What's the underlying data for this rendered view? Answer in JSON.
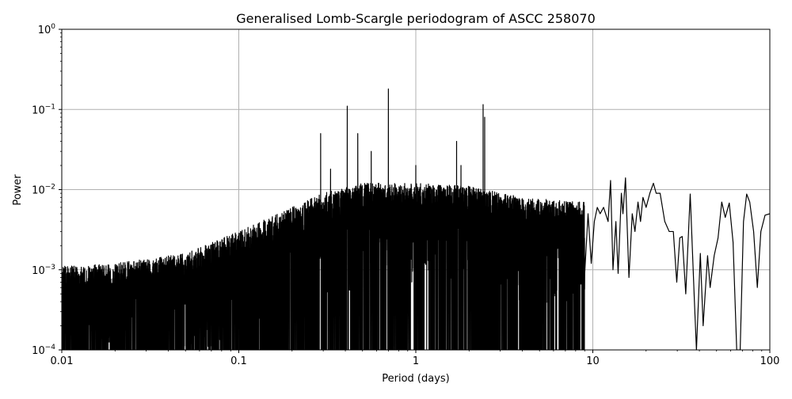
{
  "chart_data": {
    "type": "line",
    "title": "Generalised Lomb-Scargle periodogram of ASCC 258070",
    "xlabel": "Period (days)",
    "ylabel": "Power",
    "xscale": "log",
    "yscale": "log",
    "xlim": [
      0.01,
      100
    ],
    "ylim": [
      0.0001,
      1
    ],
    "grid": true,
    "legend": null,
    "x_ticks": [
      {
        "value": 0.01,
        "label": "0.01"
      },
      {
        "value": 0.1,
        "label": "0.1"
      },
      {
        "value": 1,
        "label": "1"
      },
      {
        "value": 10,
        "label": "10"
      },
      {
        "value": 100,
        "label": "100"
      }
    ],
    "y_ticks": [
      {
        "value": 0.0001,
        "base": "10",
        "exp": "−4"
      },
      {
        "value": 0.001,
        "base": "10",
        "exp": "−3"
      },
      {
        "value": 0.01,
        "base": "10",
        "exp": "−2"
      },
      {
        "value": 0.1,
        "base": "10",
        "exp": "−1"
      },
      {
        "value": 1,
        "base": "10",
        "exp": "0"
      }
    ],
    "noise_envelope": {
      "description": "Dense oscillating noise floor; upper envelope of spikes rises with period",
      "points": [
        [
          0.01,
          0.0011
        ],
        [
          0.02,
          0.0012
        ],
        [
          0.05,
          0.0016
        ],
        [
          0.1,
          0.003
        ],
        [
          0.2,
          0.006
        ],
        [
          0.3,
          0.009
        ],
        [
          0.5,
          0.012
        ],
        [
          1,
          0.012
        ],
        [
          2,
          0.011
        ],
        [
          4,
          0.008
        ],
        [
          8,
          0.007
        ]
      ]
    },
    "peaks": [
      {
        "period": 0.29,
        "power": 0.05
      },
      {
        "period": 0.33,
        "power": 0.018
      },
      {
        "period": 0.41,
        "power": 0.11
      },
      {
        "period": 0.47,
        "power": 0.05
      },
      {
        "period": 0.56,
        "power": 0.03
      },
      {
        "period": 0.7,
        "power": 0.18
      },
      {
        "period": 1.0,
        "power": 0.02
      },
      {
        "period": 1.7,
        "power": 0.04
      },
      {
        "period": 1.8,
        "power": 0.02
      },
      {
        "period": 2.4,
        "power": 0.115
      },
      {
        "period": 2.45,
        "power": 0.08
      }
    ],
    "smooth_tail": {
      "description": "Resolved low-frequency region, period ~9 to 100 d",
      "points": [
        [
          9.0,
          0.0009
        ],
        [
          9.4,
          0.005
        ],
        [
          9.8,
          0.0012
        ],
        [
          10.2,
          0.004
        ],
        [
          10.6,
          0.006
        ],
        [
          11.0,
          0.005
        ],
        [
          11.5,
          0.006
        ],
        [
          12.2,
          0.004
        ],
        [
          12.6,
          0.013
        ],
        [
          13.0,
          0.001
        ],
        [
          13.5,
          0.004
        ],
        [
          13.9,
          0.0009
        ],
        [
          14.5,
          0.009
        ],
        [
          14.8,
          0.005
        ],
        [
          15.3,
          0.014
        ],
        [
          16.0,
          0.0008
        ],
        [
          16.7,
          0.005
        ],
        [
          17.3,
          0.003
        ],
        [
          18.0,
          0.007
        ],
        [
          18.6,
          0.004
        ],
        [
          19.2,
          0.008
        ],
        [
          20.0,
          0.006
        ],
        [
          21.0,
          0.009
        ],
        [
          22.0,
          0.012
        ],
        [
          22.8,
          0.009
        ],
        [
          24.0,
          0.009
        ],
        [
          25.5,
          0.004
        ],
        [
          27.0,
          0.003
        ],
        [
          28.5,
          0.003
        ],
        [
          29.8,
          0.0007
        ],
        [
          31.0,
          0.0025
        ],
        [
          32.0,
          0.0026
        ],
        [
          33.5,
          0.0005
        ],
        [
          35.5,
          0.0088
        ],
        [
          37.5,
          0.0004
        ],
        [
          38.5,
          0.0001
        ],
        [
          40.5,
          0.0016
        ],
        [
          42.0,
          0.0002
        ],
        [
          44.5,
          0.0015
        ],
        [
          46.0,
          0.0006
        ],
        [
          48.5,
          0.0015
        ],
        [
          51.0,
          0.0025
        ],
        [
          53.5,
          0.007
        ],
        [
          56.0,
          0.0045
        ],
        [
          59.0,
          0.0068
        ],
        [
          62.0,
          0.0022
        ],
        [
          65.0,
          0.0001
        ],
        [
          68.0,
          0.0001
        ],
        [
          71.0,
          0.004
        ],
        [
          74.0,
          0.0088
        ],
        [
          77.0,
          0.007
        ],
        [
          81.0,
          0.003
        ],
        [
          85.0,
          0.0006
        ],
        [
          89.0,
          0.003
        ],
        [
          94.0,
          0.0048
        ],
        [
          100.0,
          0.005
        ]
      ]
    },
    "line_color": "#000000",
    "grid_color": "#b0b0b0"
  }
}
